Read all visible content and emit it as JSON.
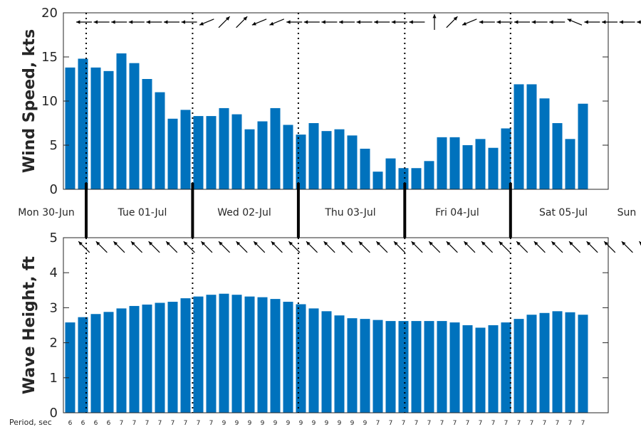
{
  "colors": {
    "bar": "#0072bd",
    "text": "#262626",
    "arrow": "#000000"
  },
  "chart_data": [
    {
      "type": "bar",
      "ylabel": "Wind Speed, kts",
      "ylim": [
        0,
        20
      ],
      "yticks": [
        0,
        5,
        10,
        15,
        20
      ],
      "values": [
        13.8,
        14.8,
        13.8,
        13.4,
        15.4,
        14.3,
        12.5,
        11.0,
        8.0,
        9.0,
        8.3,
        8.3,
        9.2,
        8.5,
        6.8,
        7.7,
        9.2,
        7.3,
        6.2,
        7.5,
        6.6,
        6.8,
        6.1,
        4.6,
        2.0,
        3.5,
        2.4,
        2.4,
        3.2,
        5.9,
        5.9,
        5.0,
        5.7,
        4.7,
        6.9,
        11.9,
        11.9,
        10.3,
        7.5,
        5.7,
        9.7
      ],
      "direction_arrows": [
        "W",
        "W",
        "W",
        "W",
        "W",
        "W",
        "W",
        "WSW",
        "NE",
        "NE",
        "WSW",
        "WSW",
        "W",
        "W",
        "W",
        "W",
        "W",
        "W",
        "W",
        "W",
        "N",
        "NE",
        "WSW",
        "W",
        "W",
        "W",
        "W",
        "W",
        "WNW",
        "W",
        "W",
        "W",
        "W"
      ]
    },
    {
      "type": "bar",
      "ylabel": "Wave Height, ft",
      "ylim": [
        0,
        5
      ],
      "yticks": [
        0,
        1,
        2,
        3,
        4,
        5
      ],
      "values": [
        2.58,
        2.73,
        2.82,
        2.88,
        2.98,
        3.05,
        3.09,
        3.14,
        3.17,
        3.27,
        3.32,
        3.37,
        3.4,
        3.37,
        3.32,
        3.3,
        3.25,
        3.17,
        3.1,
        2.98,
        2.9,
        2.78,
        2.7,
        2.68,
        2.65,
        2.62,
        2.62,
        2.62,
        2.62,
        2.62,
        2.58,
        2.5,
        2.43,
        2.5,
        2.58,
        2.68,
        2.8,
        2.85,
        2.9,
        2.87,
        2.8
      ],
      "direction_arrows": [
        "NW",
        "NW",
        "NW",
        "NW",
        "NW",
        "NW",
        "NW",
        "NW",
        "NW",
        "NW",
        "NW",
        "NW",
        "NW",
        "NW",
        "NW",
        "NW",
        "NW",
        "NW",
        "NW",
        "NW",
        "NW",
        "NW",
        "NW",
        "NW",
        "NW",
        "NW",
        "NW",
        "NW",
        "NW",
        "NW",
        "NW",
        "NW",
        "NW"
      ]
    }
  ],
  "day_labels": [
    "Mon 30-Jun",
    "Tue 01-Jul",
    "Wed 02-Jul",
    "Thu 03-Jul",
    "Fri 04-Jul",
    "Sat 05-Jul",
    "Sun"
  ],
  "period_label": "Period, sec",
  "periods": [
    6,
    6,
    6,
    6,
    7,
    7,
    7,
    7,
    7,
    7,
    7,
    7,
    9,
    9,
    9,
    9,
    9,
    9,
    9,
    9,
    9,
    9,
    9,
    9,
    7,
    7,
    7,
    7,
    7,
    7,
    7,
    7,
    7,
    7,
    7,
    7,
    7,
    7,
    7,
    7,
    7
  ]
}
